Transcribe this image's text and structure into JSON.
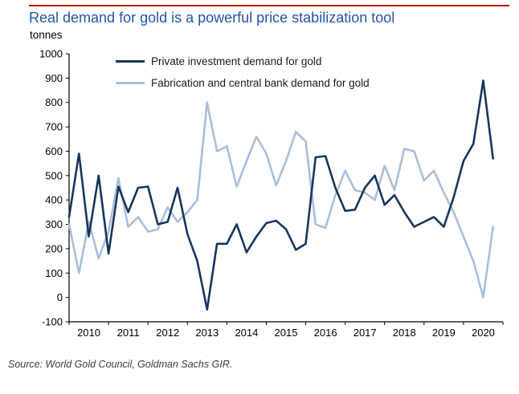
{
  "colors": {
    "title": "#2057A7",
    "rule": "#C00000",
    "axis": "#000000"
  },
  "chart_data": {
    "type": "line",
    "title": "Real demand for gold is a powerful price stabilization tool",
    "unit": "tonnes",
    "xlabel": "",
    "ylabel": "tonnes",
    "ylim": [
      -100,
      1000
    ],
    "y_tick_step": 100,
    "grid": false,
    "legend_position": "top-left-inside",
    "x_range": [
      2010,
      2021
    ],
    "x_axis_years": [
      2010,
      2011,
      2012,
      2013,
      2014,
      2015,
      2016,
      2017,
      2018,
      2019,
      2020
    ],
    "x_quarters": [
      "2010Q1",
      "2010Q2",
      "2010Q3",
      "2010Q4",
      "2011Q1",
      "2011Q2",
      "2011Q3",
      "2011Q4",
      "2012Q1",
      "2012Q2",
      "2012Q3",
      "2012Q4",
      "2013Q1",
      "2013Q2",
      "2013Q3",
      "2013Q4",
      "2014Q1",
      "2014Q2",
      "2014Q3",
      "2014Q4",
      "2015Q1",
      "2015Q2",
      "2015Q3",
      "2015Q4",
      "2016Q1",
      "2016Q2",
      "2016Q3",
      "2016Q4",
      "2017Q1",
      "2017Q2",
      "2017Q3",
      "2017Q4",
      "2018Q1",
      "2018Q2",
      "2018Q3",
      "2018Q4",
      "2019Q1",
      "2019Q2",
      "2019Q3",
      "2019Q4",
      "2020Q1",
      "2020Q2",
      "2020Q3",
      "2020Q4"
    ],
    "series": [
      {
        "name": "Private investment demand for gold",
        "color": "#17365D",
        "values": [
          330,
          590,
          250,
          500,
          180,
          455,
          350,
          450,
          455,
          300,
          310,
          450,
          260,
          150,
          -50,
          220,
          220,
          300,
          185,
          250,
          305,
          315,
          280,
          195,
          220,
          575,
          580,
          450,
          355,
          360,
          450,
          500,
          380,
          420,
          350,
          290,
          310,
          330,
          290,
          410,
          560,
          630,
          890,
          570
        ]
      },
      {
        "name": "Fabrication and central bank demand for gold",
        "color": "#A9BED9",
        "values": [
          300,
          100,
          310,
          160,
          270,
          490,
          290,
          330,
          270,
          280,
          370,
          310,
          350,
          400,
          800,
          600,
          620,
          455,
          560,
          660,
          590,
          460,
          560,
          680,
          640,
          300,
          285,
          420,
          520,
          440,
          430,
          400,
          540,
          440,
          610,
          600,
          480,
          520,
          430,
          350,
          250,
          150,
          0,
          290
        ]
      }
    ]
  },
  "footer": {
    "source": "Source: World Gold Council, Goldman Sachs GIR."
  }
}
